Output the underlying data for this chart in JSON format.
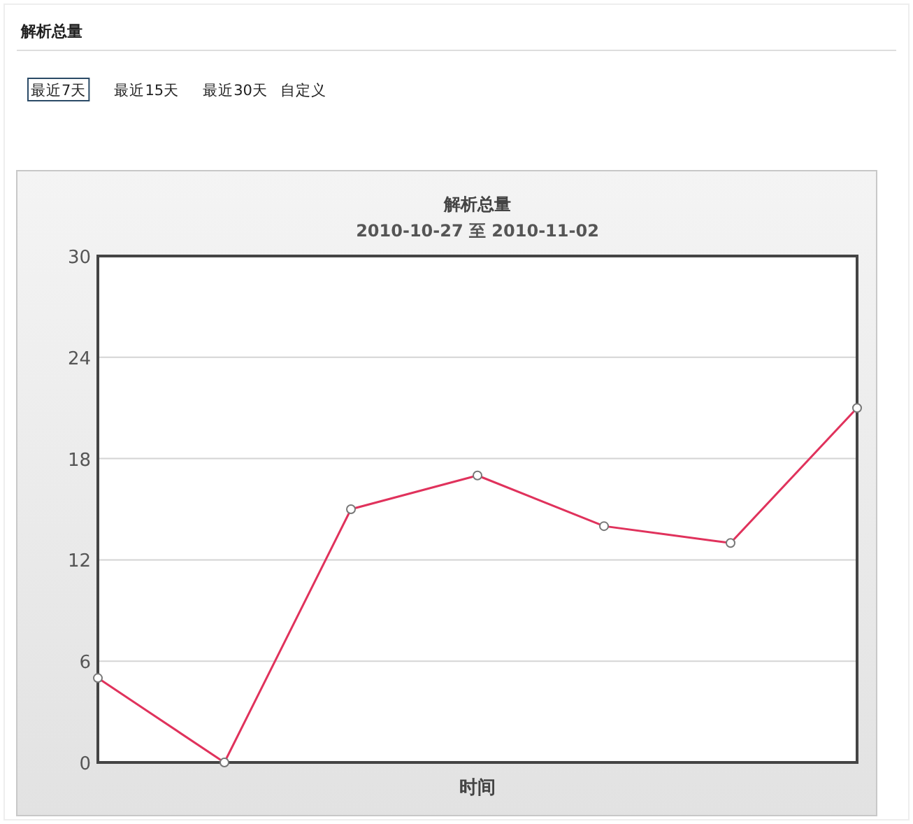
{
  "chart_data": {
    "type": "line",
    "title": "解析总量",
    "subtitle": "2010-10-27 至 2010-11-02",
    "xlabel": "时间",
    "annotations": [
      "解析总量",
      "最近7天",
      "最近15天",
      "最近30天",
      "自定义"
    ],
    "categories": [
      null,
      null,
      null,
      null,
      null,
      null,
      null
    ],
    "series": [
      {
        "color": "#e0325c",
        "values": [
          5,
          0,
          15,
          17,
          14,
          13,
          21
        ]
      }
    ],
    "ylim": [
      0,
      30
    ],
    "yticks": [
      0,
      6,
      12,
      18,
      24,
      30
    ],
    "grid": "y",
    "marker": "circle",
    "line_style": "solid"
  }
}
